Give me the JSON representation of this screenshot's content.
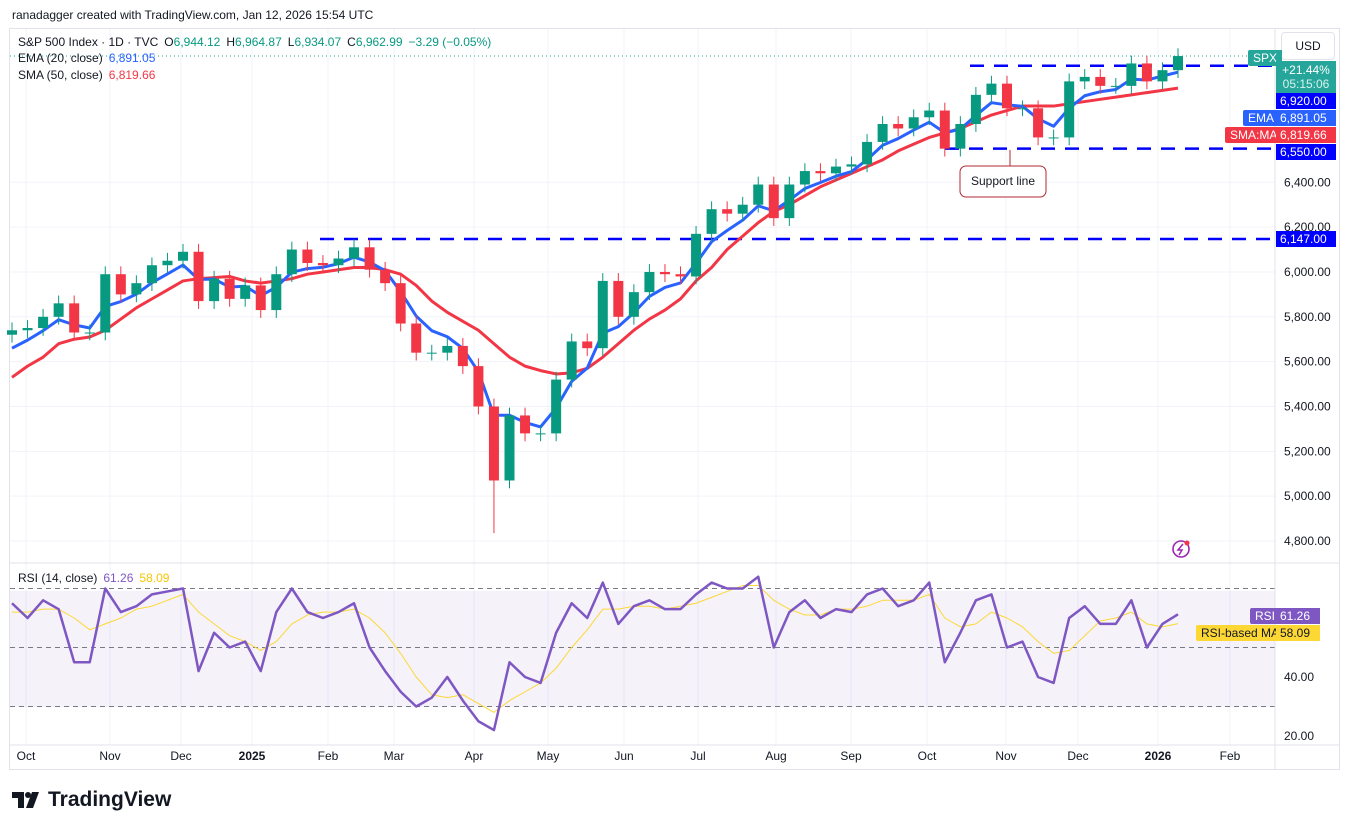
{
  "credit": "ranadagger created with TradingView.com, Jan 12, 2026 15:54 UTC",
  "legend": {
    "symbol": "S&P 500 Index · 1D · TVC",
    "open_label": "O",
    "open": "6,944.12",
    "high_label": "H",
    "high": "6,964.87",
    "low_label": "L",
    "low": "6,934.07",
    "close_label": "C",
    "close": "6,962.99",
    "change": "−3.29 (−0.05%)",
    "ema_label": "EMA (20, close)",
    "ema_value": "6,891.05",
    "sma_label": "SMA (50, close)",
    "sma_value": "6,819.66",
    "rsi_label": "RSI (14, close)",
    "rsi_value": "61.26",
    "rsi_ma_value": "58.09"
  },
  "currency": "USD",
  "price_axis_labels": {
    "spx_tag": "SPX",
    "spx_change": "+21.44%",
    "countdown": "05:15:06",
    "resistance": "6,920.00",
    "ema_tag": "EMA",
    "ema": "6,891.05",
    "sma_tag": "SMA:MA",
    "sma": "6,819.66",
    "support": "6,550.00",
    "breakout": "6,147.00",
    "rsi_tag": "RSI",
    "rsi": "61.26",
    "rsi_ma_tag": "RSI-based MA",
    "rsi_ma": "58.09"
  },
  "annotation": {
    "text": "Support line"
  },
  "colors": {
    "up": "#089981",
    "down": "#f23645",
    "ema": "#2962ff",
    "sma": "#f23645",
    "rsi": "#7e57c2",
    "rsi_ma": "#fdd835",
    "levels": "#0000ff"
  },
  "logo_text": "TradingView",
  "chart_data": [
    {
      "type": "candlestick",
      "title": "S&P 500 Index · 1D · TVC",
      "x_range": [
        "2024-09-27",
        "2026-01-12"
      ],
      "x_tick_labels": [
        "Oct",
        "Nov",
        "Dec",
        "2025",
        "Feb",
        "Mar",
        "Apr",
        "May",
        "Jun",
        "Jul",
        "Aug",
        "Sep",
        "Oct",
        "Nov",
        "Dec",
        "2026",
        "Feb"
      ],
      "y_tick_labels": [
        "6,400.00",
        "6,200.00",
        "6,000.00",
        "5,800.00",
        "5,600.00",
        "5,400.00",
        "5,200.00",
        "5,000.00",
        "4,800.00"
      ],
      "y_ticks": [
        6400,
        6200,
        6000,
        5800,
        5600,
        5400,
        5200,
        5000,
        4800
      ],
      "ylim": [
        4720,
        7150
      ],
      "close": [
        5740,
        5750,
        5800,
        5860,
        5730,
        5730,
        5990,
        5900,
        5950,
        6030,
        6050,
        6090,
        5870,
        5970,
        5880,
        5940,
        5830,
        5990,
        6100,
        6040,
        6030,
        6060,
        6110,
        6010,
        5950,
        5770,
        5640,
        5640,
        5670,
        5580,
        5400,
        5070,
        5360,
        5280,
        5280,
        5520,
        5690,
        5660,
        5960,
        5800,
        5910,
        6000,
        5990,
        5980,
        6170,
        6280,
        6260,
        6300,
        6390,
        6240,
        6390,
        6450,
        6440,
        6470,
        6480,
        6580,
        6660,
        6640,
        6690,
        6720,
        6550,
        6660,
        6790,
        6840,
        6730,
        6730,
        6600,
        6600,
        6850,
        6870,
        6830,
        6830,
        6930,
        6850,
        6900,
        6963
      ],
      "series": [
        {
          "name": "EMA (20, close)",
          "values": [
            5660,
            5696,
            5738,
            5787,
            5764,
            5750,
            5846,
            5868,
            5901,
            5952,
            5991,
            6031,
            5967,
            5968,
            5933,
            5936,
            5894,
            5932,
            5999,
            6015,
            6021,
            6037,
            6066,
            6044,
            6006,
            5912,
            5803,
            5738,
            5711,
            5659,
            5555,
            5361,
            5361,
            5329,
            5309,
            5393,
            5512,
            5571,
            5727,
            5756,
            5818,
            5891,
            5931,
            5951,
            6039,
            6135,
            6185,
            6231,
            6295,
            6273,
            6320,
            6372,
            6399,
            6427,
            6448,
            6501,
            6565,
            6595,
            6633,
            6668,
            6621,
            6637,
            6698,
            6755,
            6745,
            6739,
            6683,
            6650,
            6730,
            6786,
            6804,
            6814,
            6860,
            6856,
            6874,
            6891
          ]
        },
        {
          "name": "SMA (50, close)",
          "values": [
            5530,
            5580,
            5620,
            5680,
            5700,
            5710,
            5740,
            5790,
            5840,
            5880,
            5920,
            5960,
            5970,
            5975,
            5980,
            5960,
            5950,
            5960,
            5970,
            5990,
            6000,
            6010,
            6020,
            6020,
            6010,
            5990,
            5940,
            5870,
            5820,
            5780,
            5740,
            5680,
            5620,
            5580,
            5560,
            5545,
            5550,
            5570,
            5620,
            5680,
            5740,
            5790,
            5830,
            5880,
            5960,
            6020,
            6100,
            6160,
            6220,
            6270,
            6300,
            6340,
            6380,
            6410,
            6440,
            6470,
            6500,
            6540,
            6570,
            6600,
            6620,
            6640,
            6670,
            6700,
            6720,
            6740,
            6740,
            6740,
            6750,
            6760,
            6770,
            6780,
            6790,
            6800,
            6810,
            6820
          ]
        }
      ],
      "horizontal_levels": [
        6920,
        6550,
        6147
      ],
      "crash_low": 4835
    },
    {
      "type": "line",
      "title": "RSI (14, close)",
      "y_tick_labels": [
        "40.00",
        "20.00"
      ],
      "y_ticks": [
        40,
        20
      ],
      "bands": [
        70,
        50,
        30
      ],
      "ylim": [
        17,
        80
      ],
      "series": [
        {
          "name": "RSI",
          "values": [
            65,
            60,
            66,
            63,
            45,
            45,
            70,
            62,
            64,
            68,
            69,
            70,
            42,
            55,
            50,
            52,
            42,
            62,
            70,
            62,
            60,
            62,
            65,
            50,
            42,
            35,
            30,
            33,
            40,
            32,
            25,
            22,
            45,
            40,
            38,
            55,
            65,
            60,
            72,
            58,
            64,
            66,
            63,
            63,
            68,
            72,
            70,
            70,
            74,
            50,
            62,
            66,
            60,
            63,
            62,
            68,
            70,
            64,
            66,
            72,
            45,
            55,
            66,
            68,
            50,
            52,
            40,
            38,
            60,
            64,
            58,
            58,
            66,
            50,
            58,
            61.26
          ]
        },
        {
          "name": "RSI-based MA",
          "values": [
            62,
            62,
            63,
            63,
            60,
            56,
            58,
            60,
            63,
            64,
            66,
            68,
            62,
            58,
            54,
            52,
            49,
            52,
            58,
            61,
            62,
            62,
            63,
            60,
            55,
            48,
            40,
            34,
            33,
            34,
            31,
            28,
            32,
            35,
            38,
            43,
            50,
            56,
            63,
            63,
            64,
            64,
            63,
            64,
            65,
            67,
            69,
            71,
            71,
            66,
            63,
            61,
            61,
            63,
            63,
            64,
            66,
            66,
            66,
            68,
            60,
            57,
            58,
            62,
            60,
            57,
            52,
            48,
            49,
            54,
            59,
            60,
            62,
            58,
            57,
            58.09
          ]
        }
      ]
    }
  ]
}
